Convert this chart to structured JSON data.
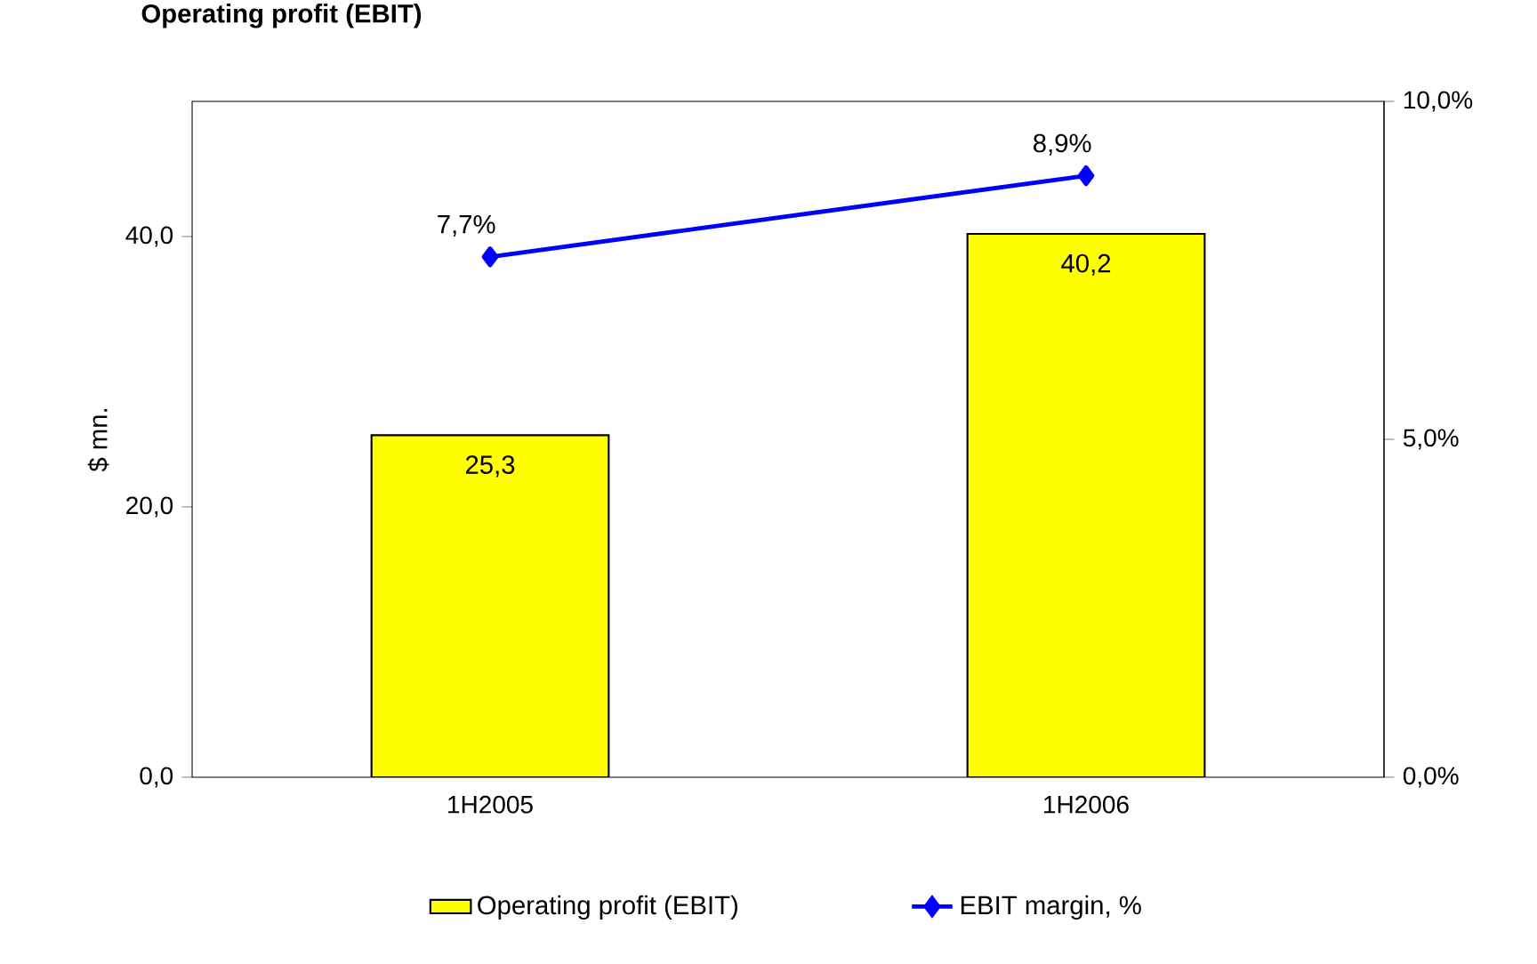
{
  "chart_data": {
    "type": "bar",
    "title": "Operating profit (EBIT)",
    "ylabel": "$ mn.",
    "categories": [
      "1H2005",
      "1H2006"
    ],
    "ylim": [
      0,
      50
    ],
    "yticks": [
      {
        "value": 0,
        "label": "0,0"
      },
      {
        "value": 20,
        "label": "20,0"
      },
      {
        "value": 40,
        "label": "40,0"
      }
    ],
    "y2lim": [
      0,
      10
    ],
    "y2ticks": [
      {
        "value": 0,
        "label": "0,0%"
      },
      {
        "value": 5,
        "label": "5,0%"
      },
      {
        "value": 10,
        "label": "10,0%"
      }
    ],
    "series": [
      {
        "name": "Operating profit (EBIT)",
        "color": "#ffff00",
        "values": [
          25.3,
          40.2
        ],
        "value_labels": [
          "25,3",
          "40,2"
        ]
      },
      {
        "name": "EBIT margin, %",
        "type": "line",
        "axis": "y2",
        "color": "#0000ff",
        "values": [
          7.7,
          8.9
        ],
        "value_labels": [
          "7,7%",
          "8,9%"
        ]
      }
    ],
    "marker": "diamond",
    "grid": false,
    "legend": "bottom"
  }
}
